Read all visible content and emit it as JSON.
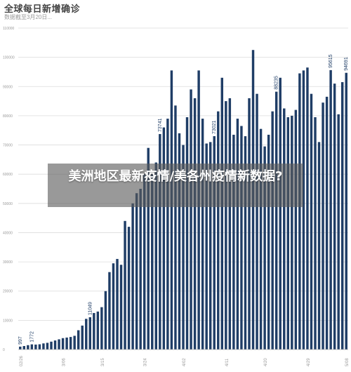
{
  "chart_data": {
    "type": "bar",
    "title": "全球每日新增确诊",
    "subtitle": "数据截至3月20日...",
    "xlabel": "",
    "ylabel": "",
    "ylim": [
      0,
      110000
    ],
    "yticks": [
      0,
      10000,
      20000,
      30000,
      40000,
      50000,
      60000,
      70000,
      80000,
      90000,
      100000,
      110000
    ],
    "ytick_labels": [
      "0",
      "10000",
      "20000",
      "30000",
      "40000",
      "50000",
      "60000",
      "70000",
      "80000",
      "90000",
      "100000",
      "110000"
    ],
    "grid": true,
    "bar_color": "#1f3d66",
    "series": [
      {
        "values": [
          997,
          1200,
          1500,
          1772,
          1700,
          1800,
          2100,
          2300,
          2700,
          3100,
          3500,
          3900,
          4100,
          4300,
          4700,
          6600,
          8200,
          10500,
          11049,
          12500,
          13000,
          14500,
          20000,
          26500,
          29500,
          31000,
          29000,
          44000,
          42000,
          50000,
          53500,
          55000,
          60000,
          69000,
          60000,
          64000,
          73741,
          76000,
          79000,
          95500,
          83500,
          74000,
          70000,
          79500,
          89000,
          86000,
          95500,
          79000,
          70500,
          71000,
          73021,
          81500,
          93000,
          85000,
          86000,
          73500,
          79000,
          76500,
          73000,
          86000,
          102500,
          87500,
          75500,
          69500,
          73500,
          81500,
          88235,
          93000,
          82500,
          79500,
          80000,
          82000,
          94500,
          95500,
          96500,
          87500,
          79500,
          71000,
          84500,
          86500,
          95615,
          91000,
          80500,
          91500,
          94691
        ]
      }
    ],
    "data_labels": [
      {
        "index": 0,
        "text": "997"
      },
      {
        "index": 3,
        "text": "1772"
      },
      {
        "index": 18,
        "text": "11049"
      },
      {
        "index": 36,
        "text": "73741"
      },
      {
        "index": 50,
        "text": "73021"
      },
      {
        "index": 66,
        "text": "88235"
      },
      {
        "index": 80,
        "text": "95615"
      },
      {
        "index": 84,
        "text": "94691"
      }
    ],
    "x_tick_labels": [
      "02/26",
      "3/06",
      "3/15",
      "3/24",
      "4/02",
      "4/11",
      "4/20",
      "4/29",
      "5/08"
    ]
  },
  "overlay": {
    "text": "美洲地区最新疫情/美各州疫情新数据?"
  }
}
